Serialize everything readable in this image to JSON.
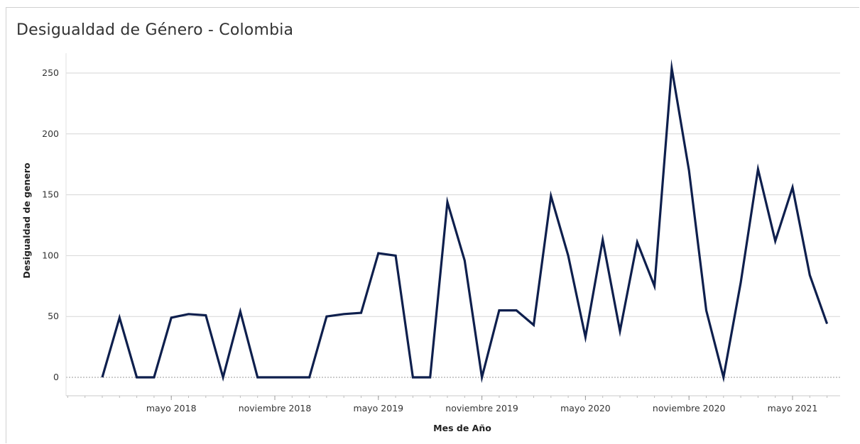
{
  "chart_data": {
    "type": "line",
    "title": "Desigualdad de Género - Colombia",
    "xlabel": "Mes de Año",
    "ylabel": "Desigualdad de genero",
    "ylim": [
      0,
      250
    ],
    "yticks": [
      0,
      50,
      100,
      150,
      200,
      250
    ],
    "grid": true,
    "line_color": "#0e1f4d",
    "xtick_labels": [
      {
        "month": "2018-05",
        "label": "mayo 2018"
      },
      {
        "month": "2018-11",
        "label": "noviembre 2018"
      },
      {
        "month": "2019-05",
        "label": "mayo 2019"
      },
      {
        "month": "2019-11",
        "label": "noviembre 2019"
      },
      {
        "month": "2020-05",
        "label": "mayo 2020"
      },
      {
        "month": "2020-11",
        "label": "noviembre 2020"
      },
      {
        "month": "2021-05",
        "label": "mayo 2021"
      }
    ],
    "series": [
      {
        "x": [
          "2018-01",
          "2018-02",
          "2018-03",
          "2018-04",
          "2018-05",
          "2018-06",
          "2018-07",
          "2018-08",
          "2018-09",
          "2018-10",
          "2018-11",
          "2018-12",
          "2019-01",
          "2019-02",
          "2019-03",
          "2019-04",
          "2019-05",
          "2019-06",
          "2019-07",
          "2019-08",
          "2019-09",
          "2019-10",
          "2019-11",
          "2019-12",
          "2020-01",
          "2020-02",
          "2020-03",
          "2020-04",
          "2020-05",
          "2020-06",
          "2020-07",
          "2020-08",
          "2020-09",
          "2020-10",
          "2020-11",
          "2020-12",
          "2021-01",
          "2021-02",
          "2021-03",
          "2021-04",
          "2021-05",
          "2021-06",
          "2021-07"
        ],
        "values": [
          0,
          49,
          0,
          0,
          49,
          52,
          51,
          0,
          54,
          0,
          0,
          0,
          0,
          50,
          52,
          53,
          102,
          100,
          0,
          0,
          144,
          96,
          0,
          55,
          55,
          43,
          149,
          100,
          33,
          113,
          38,
          111,
          75,
          254,
          170,
          55,
          0,
          78,
          171,
          112,
          156,
          84,
          44
        ]
      }
    ]
  }
}
